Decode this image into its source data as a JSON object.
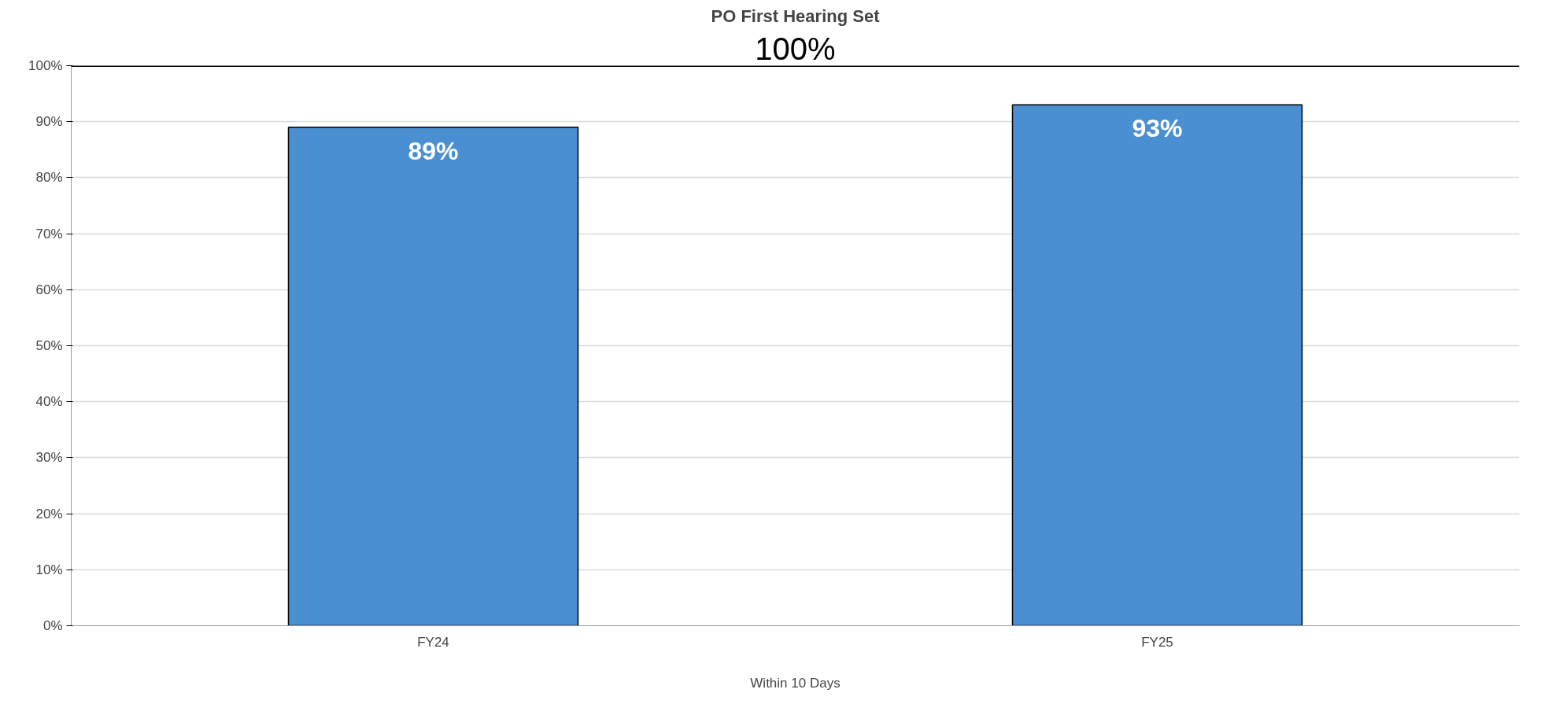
{
  "chart_data": {
    "type": "bar",
    "title": "PO First Hearing Set",
    "xlabel": "Within 10 Days",
    "categories": [
      "FY24",
      "FY25"
    ],
    "values": [
      89,
      93
    ],
    "color": "#4a8fd1",
    "value_labels": [
      "89%",
      "93%"
    ],
    "ylim": [
      0,
      100
    ],
    "yticks": [
      {
        "value": 0,
        "label": "0%"
      },
      {
        "value": 10,
        "label": "10%"
      },
      {
        "value": 20,
        "label": "20%"
      },
      {
        "value": 30,
        "label": "30%"
      },
      {
        "value": 40,
        "label": "40%"
      },
      {
        "value": 50,
        "label": "50%"
      },
      {
        "value": 60,
        "label": "60%"
      },
      {
        "value": 70,
        "label": "70%"
      },
      {
        "value": 80,
        "label": "80%"
      },
      {
        "value": 90,
        "label": "90%"
      },
      {
        "value": 100,
        "label": "100%"
      }
    ],
    "ref_lines": [
      {
        "axis": "y",
        "value": 100,
        "label": "100%",
        "color": "#000000"
      }
    ],
    "grid": "y"
  }
}
